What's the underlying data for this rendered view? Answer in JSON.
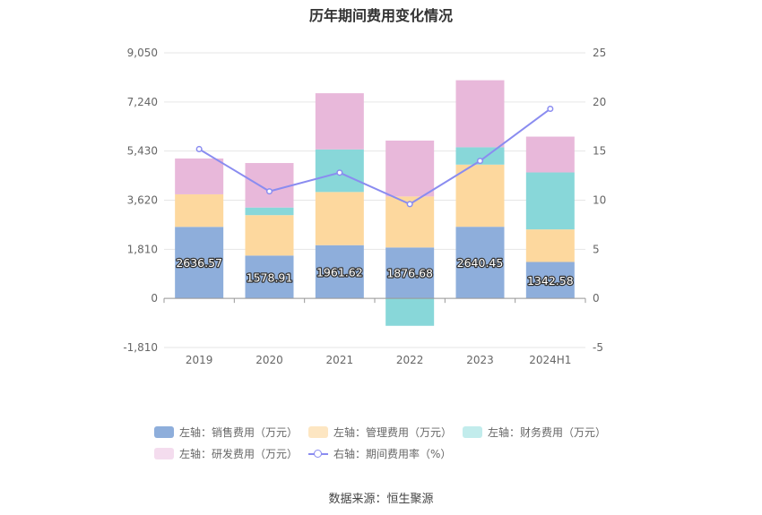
{
  "chart_data": {
    "type": "bar",
    "title": "历年期间费用变化情况",
    "categories": [
      "2019",
      "2020",
      "2021",
      "2022",
      "2023",
      "2024H1"
    ],
    "left_axis": {
      "ticks": [
        "9,050",
        "7,240",
        "5,430",
        "3,620",
        "1,810",
        "0",
        "-1,810"
      ],
      "ylim": [
        -1810,
        9050
      ]
    },
    "right_axis": {
      "ticks": [
        "25",
        "20",
        "15",
        "10",
        "5",
        "0",
        "-5"
      ],
      "ylim": [
        -5,
        25
      ]
    },
    "series": [
      {
        "name": "左轴：销售费用（万元）",
        "axis": "left",
        "color": "#8eaedb",
        "values": [
          2636.57,
          1578.91,
          1961.62,
          1876.68,
          2640.45,
          1342.58
        ],
        "labels": [
          "2636.57",
          "1578.91",
          "1961.62",
          "1876.68",
          "2640.45",
          "1342.58"
        ]
      },
      {
        "name": "左轴：管理费用（万元）",
        "axis": "left",
        "color": "#fdd89e",
        "values": [
          1200,
          1490,
          1960,
          1880,
          2290,
          1200
        ]
      },
      {
        "name": "左轴：财务费用（万元）",
        "axis": "left",
        "color": "#88d7d9",
        "values": [
          0,
          280,
          1570,
          -1010,
          640,
          2100
        ]
      },
      {
        "name": "左轴：研发费用（万元）",
        "axis": "left",
        "color": "#e8b8da",
        "values": [
          1320,
          1640,
          2070,
          2060,
          2470,
          1320
        ]
      },
      {
        "name": "右轴：期间费用率（%）",
        "axis": "right",
        "type": "line",
        "color": "#8a8cf0",
        "values": [
          15.2,
          10.9,
          12.8,
          9.6,
          14.0,
          19.3
        ]
      }
    ],
    "source": "数据来源：恒生聚源"
  }
}
